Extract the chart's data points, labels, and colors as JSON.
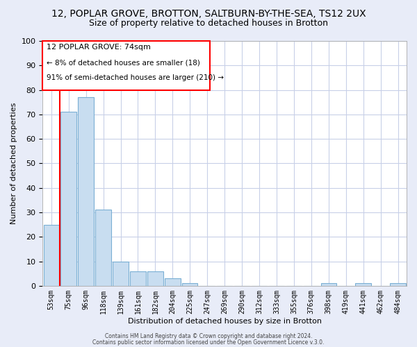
{
  "title_line1": "12, POPLAR GROVE, BROTTON, SALTBURN-BY-THE-SEA, TS12 2UX",
  "title_line2": "Size of property relative to detached houses in Brotton",
  "xlabel": "Distribution of detached houses by size in Brotton",
  "ylabel": "Number of detached properties",
  "bin_labels": [
    "53sqm",
    "75sqm",
    "96sqm",
    "118sqm",
    "139sqm",
    "161sqm",
    "182sqm",
    "204sqm",
    "225sqm",
    "247sqm",
    "269sqm",
    "290sqm",
    "312sqm",
    "333sqm",
    "355sqm",
    "376sqm",
    "398sqm",
    "419sqm",
    "441sqm",
    "462sqm",
    "484sqm"
  ],
  "bar_heights": [
    25,
    71,
    77,
    31,
    10,
    6,
    6,
    3,
    1,
    0,
    0,
    0,
    0,
    0,
    0,
    0,
    1,
    0,
    1,
    0,
    1
  ],
  "bar_color": "#c8ddf0",
  "bar_edge_color": "#7aafd4",
  "ylim": [
    0,
    100
  ],
  "annotation_text_line1": "12 POPLAR GROVE: 74sqm",
  "annotation_text_line2": "← 8% of detached houses are smaller (18)",
  "annotation_text_line3": "91% of semi-detached houses are larger (210) →",
  "footer_line1": "Contains HM Land Registry data © Crown copyright and database right 2024.",
  "footer_line2": "Contains public sector information licensed under the Open Government Licence v.3.0.",
  "background_color": "#e8ecf8",
  "plot_bg_color": "#ffffff",
  "grid_color": "#c8d0e8",
  "title1_fontsize": 10,
  "title2_fontsize": 9,
  "xlabel_fontsize": 8,
  "ylabel_fontsize": 8,
  "tick_fontsize": 7,
  "annot_fontsize1": 8,
  "annot_fontsize2": 7.5
}
